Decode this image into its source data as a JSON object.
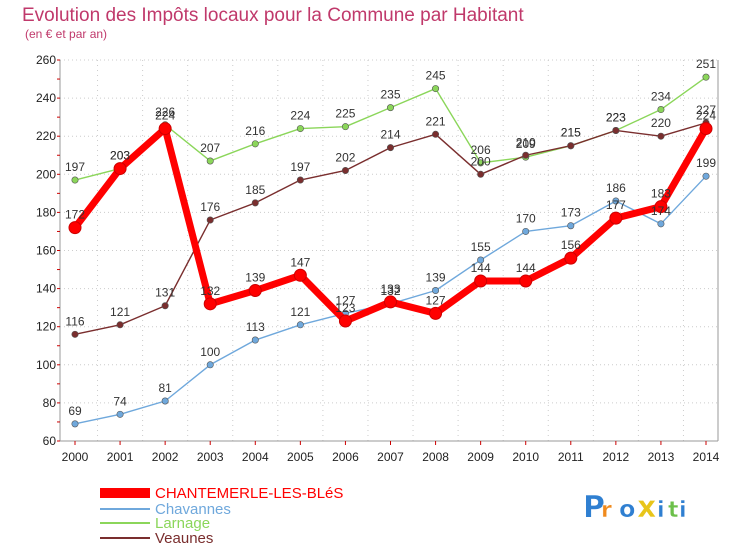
{
  "chart_data": {
    "type": "line",
    "title": "Evolution des Impôts locaux pour la Commune par Habitant",
    "subtitle": "(en € et par an)",
    "xlabel": "",
    "ylabel": "",
    "x": [
      "2000",
      "2001",
      "2002",
      "2003",
      "2004",
      "2005",
      "2006",
      "2007",
      "2008",
      "2009",
      "2010",
      "2011",
      "2012",
      "2013",
      "2014"
    ],
    "ylim": [
      60,
      260
    ],
    "yticks": [
      60,
      80,
      100,
      120,
      140,
      160,
      180,
      200,
      220,
      240,
      260
    ],
    "yticks_text": [
      "60",
      "80",
      "100",
      "120",
      "140",
      "160",
      "180",
      "200",
      "220",
      "240",
      "260"
    ],
    "grid": "dotted-horizontal",
    "legend_position": "bottom-left",
    "series": [
      {
        "name": "CHANTEMERLE-LES-BLéS",
        "color": "#ff0000",
        "values": [
          172,
          203,
          224,
          132,
          139,
          147,
          123,
          133,
          127,
          144,
          144,
          156,
          177,
          183,
          224
        ],
        "labels": [
          "172",
          "203",
          "224",
          "132",
          "139",
          "147",
          "123",
          "133",
          "127",
          "144",
          "144",
          "156",
          "177",
          "183",
          "224"
        ]
      },
      {
        "name": "Chavannes",
        "color": "#6fa8dc",
        "values": [
          69,
          74,
          81,
          100,
          113,
          121,
          127,
          132,
          139,
          155,
          170,
          173,
          186,
          174,
          199
        ],
        "labels": [
          "69",
          "74",
          "81",
          "100",
          "113",
          "121",
          "127",
          "132",
          "139",
          "155",
          "170",
          "173",
          "186",
          "174",
          "199"
        ]
      },
      {
        "name": "Larnage",
        "color": "#8bd65a",
        "values": [
          197,
          203,
          226,
          207,
          216,
          224,
          225,
          235,
          245,
          206,
          209,
          215,
          223,
          234,
          251
        ],
        "labels": [
          "197",
          "203",
          "226",
          "207",
          "216",
          "224",
          "225",
          "235",
          "245",
          "206",
          "209",
          "215",
          "223",
          "234",
          "251"
        ]
      },
      {
        "name": "Veaunes",
        "color": "#7a2e2e",
        "values": [
          116,
          121,
          131,
          176,
          185,
          197,
          202,
          214,
          221,
          200,
          210,
          215,
          223,
          220,
          227
        ],
        "labels": [
          "116",
          "121",
          "131",
          "176",
          "185",
          "197",
          "202",
          "214",
          "221",
          "200",
          "210",
          "215",
          "223",
          "220",
          "227"
        ]
      }
    ]
  },
  "logo_text": "Proxiti",
  "colors": {
    "title": "#c0396b",
    "axis": "#999999",
    "tick_mark": "#cc0000",
    "grid": "#cccccc"
  }
}
